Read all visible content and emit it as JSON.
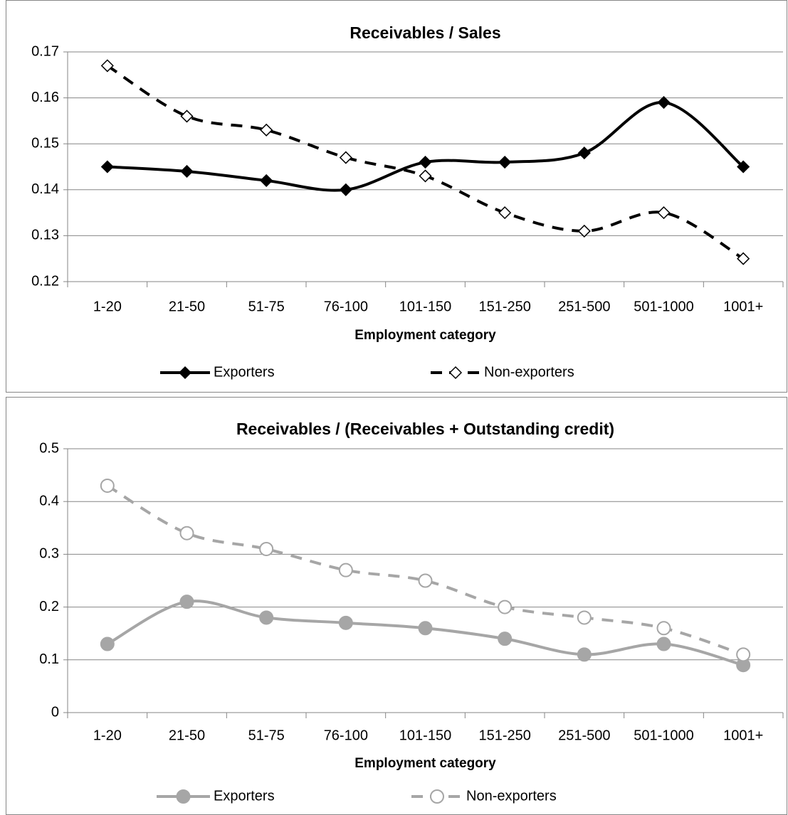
{
  "chart_data": [
    {
      "type": "line",
      "title": "Receivables / Sales",
      "x_label": "Employment category",
      "categories": [
        "1-20",
        "21-50",
        "51-75",
        "76-100",
        "101-150",
        "151-250",
        "251-500",
        "501-1000",
        "1001+"
      ],
      "series": [
        {
          "name": "Exporters",
          "color": "#000000",
          "marker": "diamond",
          "marker_filled": true,
          "dashed": false,
          "values": [
            0.145,
            0.144,
            0.142,
            0.14,
            0.146,
            0.146,
            0.148,
            0.159,
            0.145
          ]
        },
        {
          "name": "Non-exporters",
          "color": "#000000",
          "marker": "diamond",
          "marker_filled": false,
          "dashed": true,
          "values": [
            0.167,
            0.156,
            0.153,
            0.147,
            0.143,
            0.135,
            0.131,
            0.135,
            0.125
          ]
        }
      ],
      "ylim": [
        0.12,
        0.17
      ],
      "yticks": [
        0.12,
        0.13,
        0.14,
        0.15,
        0.16,
        0.17
      ],
      "grid": true,
      "smooth": true,
      "legend": "bottom"
    },
    {
      "type": "line",
      "title": "Receivables / (Receivables + Outstanding credit)",
      "x_label": "Employment category",
      "categories": [
        "1-20",
        "21-50",
        "51-75",
        "76-100",
        "101-150",
        "151-250",
        "251-500",
        "501-1000",
        "1001+"
      ],
      "series": [
        {
          "name": "Exporters",
          "color": "#a6a6a6",
          "marker": "circle",
          "marker_filled": true,
          "dashed": false,
          "values": [
            0.13,
            0.21,
            0.18,
            0.17,
            0.16,
            0.14,
            0.11,
            0.13,
            0.09
          ]
        },
        {
          "name": "Non-exporters",
          "color": "#a6a6a6",
          "marker": "circle",
          "marker_filled": false,
          "dashed": true,
          "values": [
            0.43,
            0.34,
            0.31,
            0.27,
            0.25,
            0.2,
            0.18,
            0.16,
            0.11
          ]
        }
      ],
      "ylim": [
        0,
        0.5
      ],
      "yticks": [
        0,
        0.1,
        0.2,
        0.3,
        0.4,
        0.5
      ],
      "grid": true,
      "smooth": true,
      "legend": "bottom"
    }
  ]
}
